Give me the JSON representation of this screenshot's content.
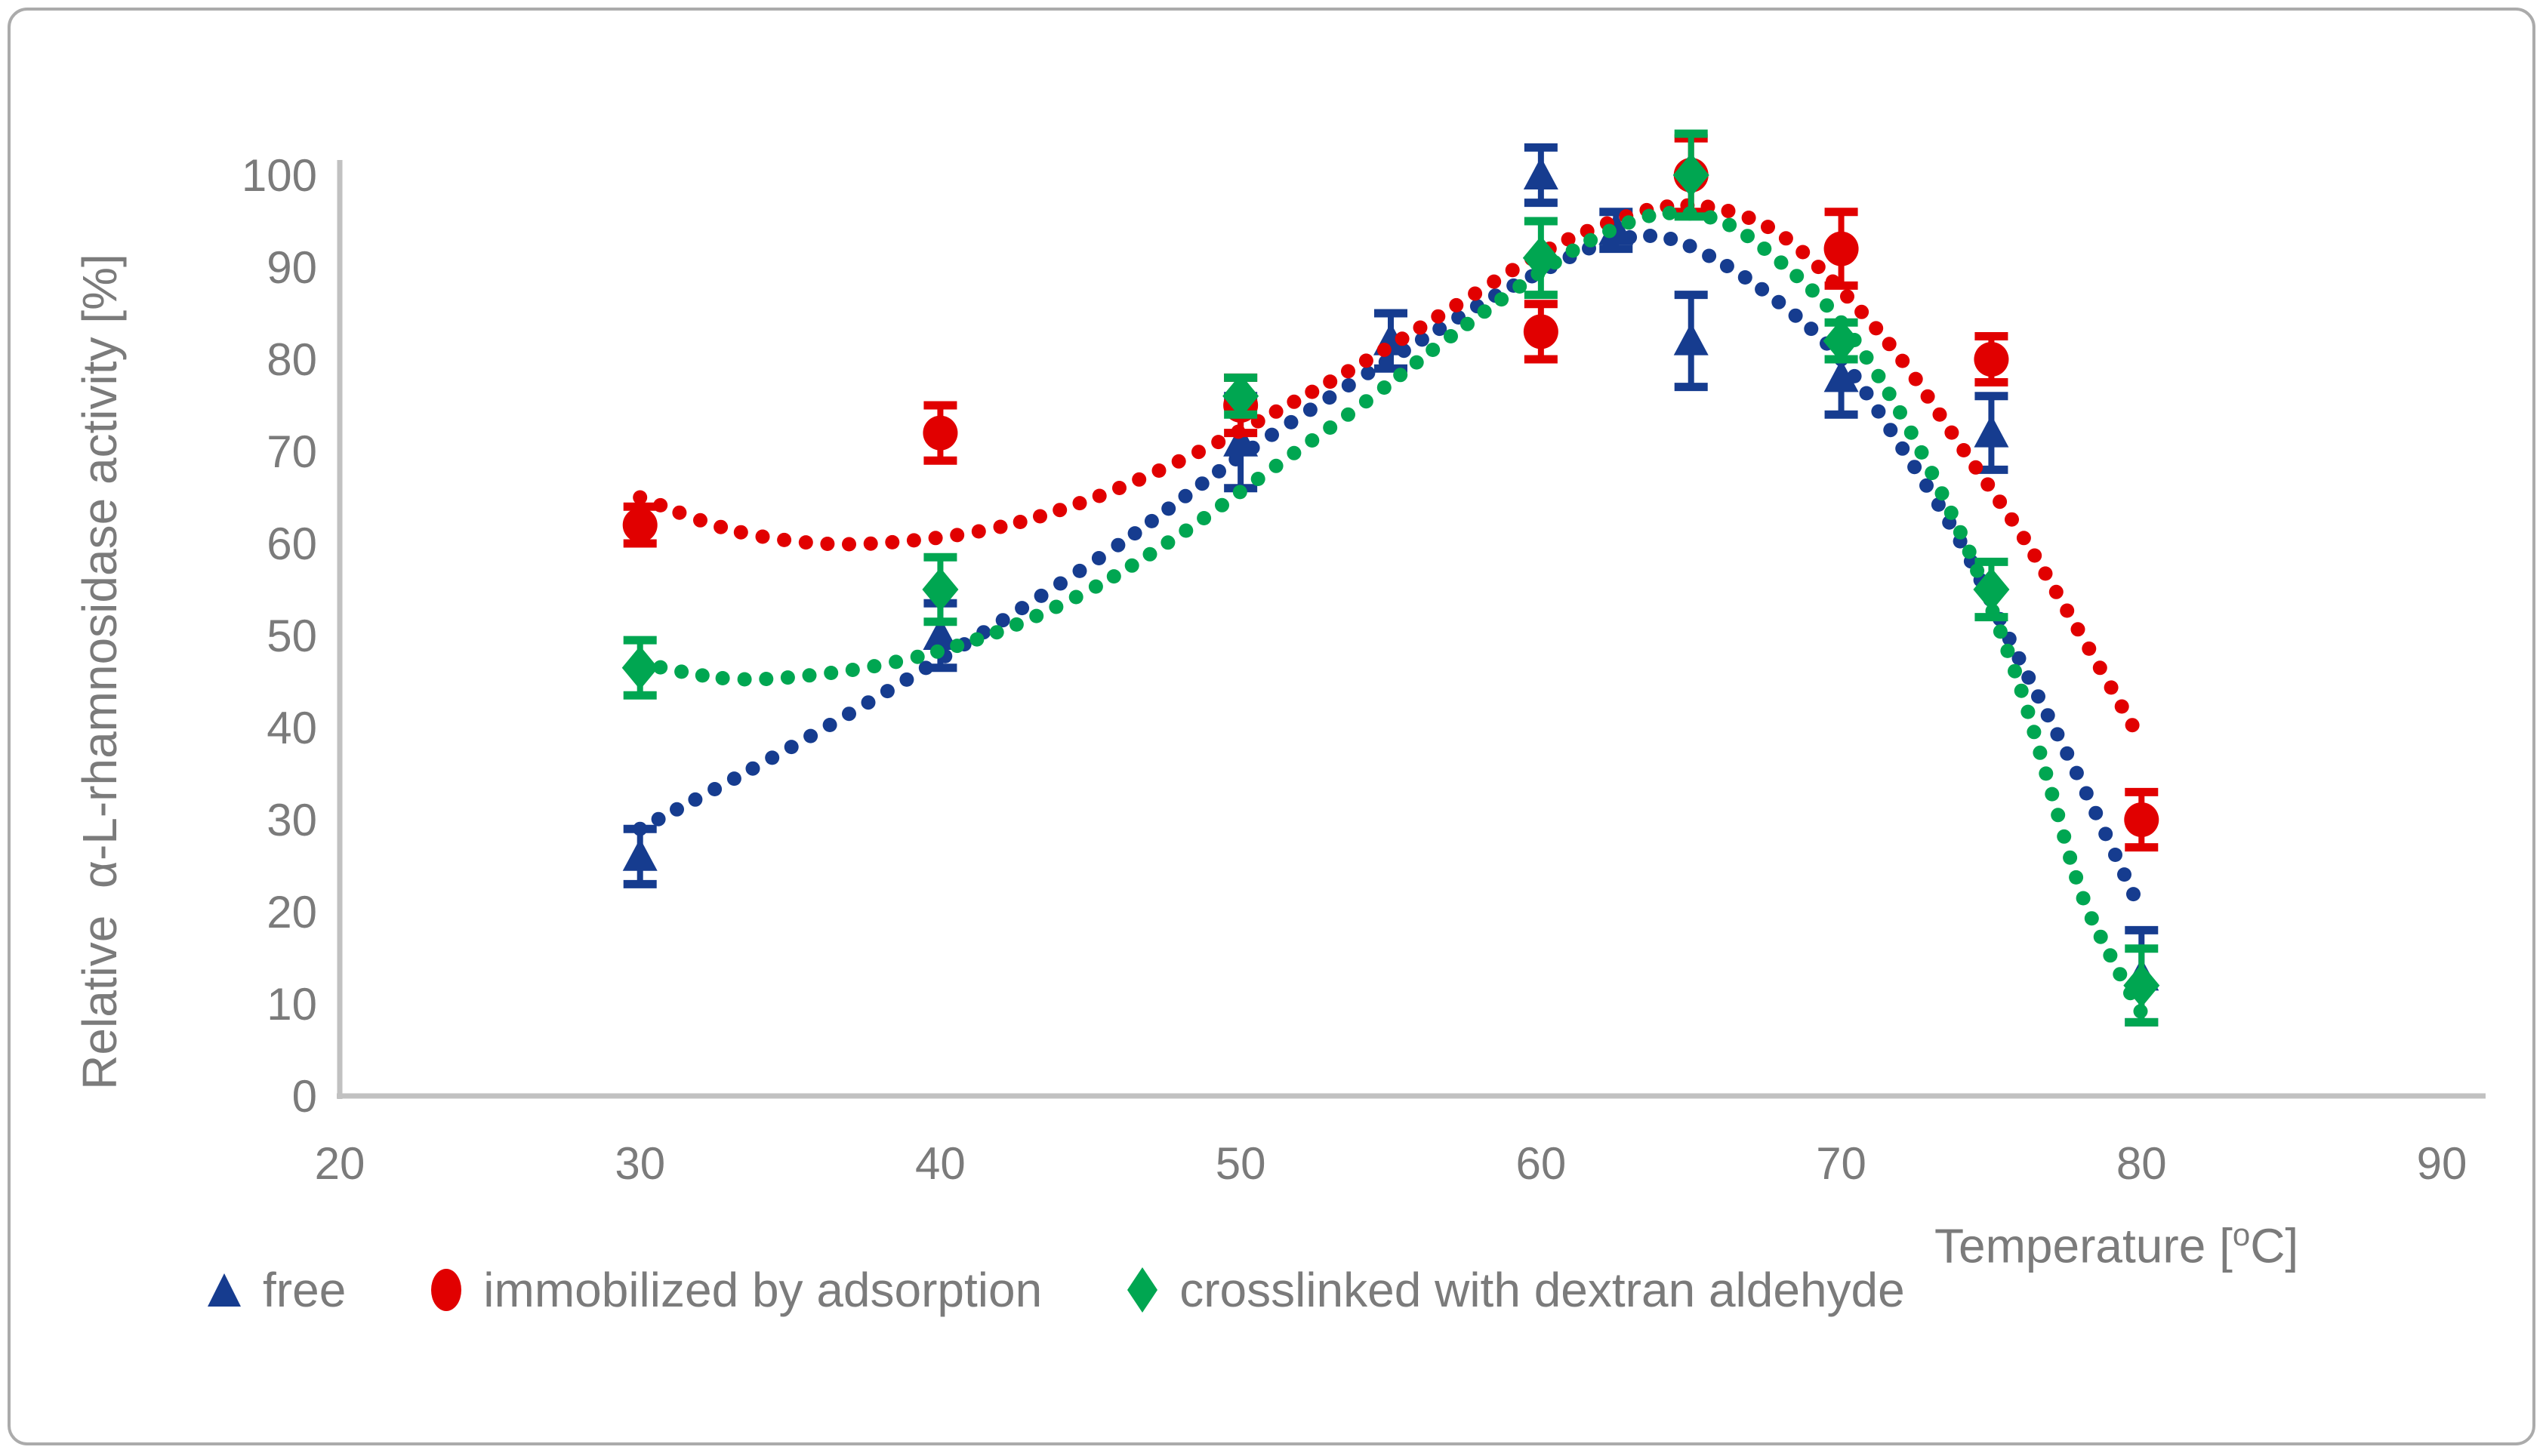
{
  "figure": {
    "frame_color": "#ABABAB",
    "background": "#FFFFFF"
  },
  "chart_data": {
    "type": "scatter",
    "title": "",
    "xlabel": "Temperature [°C]",
    "xlabel_parts": {
      "text": "Temperature [",
      "sup": "o",
      "end": "C]"
    },
    "ylabel": "Relative  α-L-rhamnosidase activity [%]",
    "xlim": [
      20,
      90
    ],
    "ylim": [
      0,
      100
    ],
    "xticks": [
      20,
      30,
      40,
      50,
      60,
      70,
      80,
      90
    ],
    "yticks": [
      0,
      10,
      20,
      30,
      40,
      50,
      60,
      70,
      80,
      90,
      100
    ],
    "grid": false,
    "legend_position": "bottom",
    "axis_color": "#C1C1C1",
    "text_color": "#7B7B7B",
    "trend_style": "dotted",
    "series": [
      {
        "name": "free",
        "marker": "triangle",
        "color": "#163C8F",
        "points": [
          {
            "x": 30,
            "y": 26,
            "err": 3
          },
          {
            "x": 40,
            "y": 50,
            "err": 3.5
          },
          {
            "x": 50,
            "y": 71,
            "err": 5
          },
          {
            "x": 55,
            "y": 82,
            "err": 3
          },
          {
            "x": 60,
            "y": 100,
            "err": 3
          },
          {
            "x": 62.5,
            "y": 94,
            "err": 2
          },
          {
            "x": 65,
            "y": 82,
            "err": 5
          },
          {
            "x": 70,
            "y": 78,
            "err": 4
          },
          {
            "x": 75,
            "y": 72,
            "err": 4
          },
          {
            "x": 80,
            "y": 13,
            "err": 5
          }
        ],
        "trend": [
          [
            30,
            29
          ],
          [
            34,
            36
          ],
          [
            38,
            43.5
          ],
          [
            42,
            51.5
          ],
          [
            46,
            60
          ],
          [
            50,
            69.5
          ],
          [
            54,
            78
          ],
          [
            58,
            86
          ],
          [
            60,
            89.5
          ],
          [
            62,
            92.5
          ],
          [
            64,
            93.3
          ],
          [
            66,
            90.5
          ],
          [
            68,
            86
          ],
          [
            70,
            80
          ],
          [
            72,
            70.5
          ],
          [
            74,
            60
          ],
          [
            76,
            47
          ],
          [
            78,
            34
          ],
          [
            80,
            20
          ]
        ]
      },
      {
        "name": "immobilized by adsorption",
        "marker": "circle",
        "color": "#E10000",
        "points": [
          {
            "x": 30,
            "y": 62,
            "err": 2
          },
          {
            "x": 40,
            "y": 72,
            "err": 3
          },
          {
            "x": 50,
            "y": 75,
            "err": 3
          },
          {
            "x": 60,
            "y": 83,
            "err": 3
          },
          {
            "x": 65,
            "y": 100,
            "err": 4
          },
          {
            "x": 70,
            "y": 92,
            "err": 4
          },
          {
            "x": 75,
            "y": 80,
            "err": 2.5
          },
          {
            "x": 80,
            "y": 30,
            "err": 3
          }
        ],
        "trend": [
          [
            30,
            65
          ],
          [
            33,
            61.5
          ],
          [
            36,
            60
          ],
          [
            39,
            60.3
          ],
          [
            42,
            61.8
          ],
          [
            45,
            64.8
          ],
          [
            48,
            69
          ],
          [
            51,
            74
          ],
          [
            54,
            79.5
          ],
          [
            57,
            85.5
          ],
          [
            60,
            91.5
          ],
          [
            62,
            94.5
          ],
          [
            64,
            96.5
          ],
          [
            66,
            96.3
          ],
          [
            68,
            93.5
          ],
          [
            70,
            87.5
          ],
          [
            72,
            80
          ],
          [
            74,
            70.5
          ],
          [
            76,
            61
          ],
          [
            78,
            50
          ],
          [
            80,
            38.5
          ]
        ]
      },
      {
        "name": "crosslinked with dextran aldehyde",
        "marker": "diamond",
        "color": "#00A651",
        "points": [
          {
            "x": 30,
            "y": 46.5,
            "err": 3
          },
          {
            "x": 40,
            "y": 55,
            "err": 3.5
          },
          {
            "x": 50,
            "y": 76,
            "err": 2
          },
          {
            "x": 60,
            "y": 91,
            "err": 4
          },
          {
            "x": 65,
            "y": 100,
            "err": 4.5
          },
          {
            "x": 70,
            "y": 82,
            "err": 2
          },
          {
            "x": 75,
            "y": 55,
            "err": 3
          },
          {
            "x": 80,
            "y": 12,
            "err": 4
          }
        ],
        "trend": [
          [
            30,
            47
          ],
          [
            33,
            45.3
          ],
          [
            36,
            45.8
          ],
          [
            39,
            47.5
          ],
          [
            42,
            50.5
          ],
          [
            45,
            55
          ],
          [
            48,
            61
          ],
          [
            51,
            68
          ],
          [
            54,
            75
          ],
          [
            57,
            82.5
          ],
          [
            60,
            89.5
          ],
          [
            62,
            93.5
          ],
          [
            64,
            95.8
          ],
          [
            66,
            95
          ],
          [
            68,
            90.5
          ],
          [
            70,
            84
          ],
          [
            72,
            74
          ],
          [
            74,
            61
          ],
          [
            75,
            53
          ],
          [
            76,
            44
          ],
          [
            77,
            33
          ],
          [
            78,
            22
          ],
          [
            79,
            15
          ],
          [
            80,
            9
          ]
        ]
      }
    ]
  }
}
